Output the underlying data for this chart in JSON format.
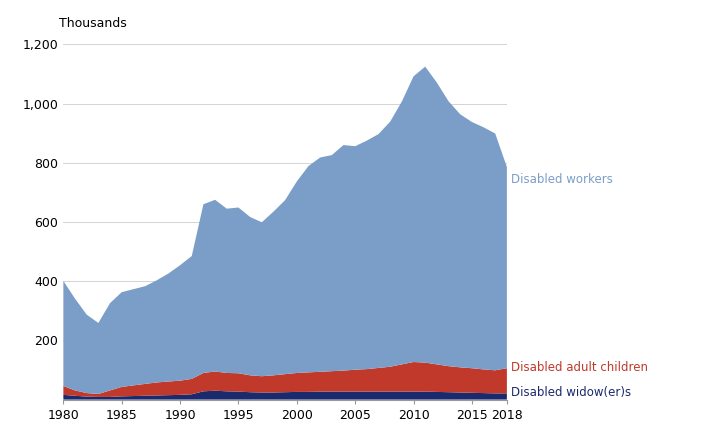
{
  "years": [
    1980,
    1981,
    1982,
    1983,
    1984,
    1985,
    1986,
    1987,
    1988,
    1989,
    1990,
    1991,
    1992,
    1993,
    1994,
    1995,
    1996,
    1997,
    1998,
    1999,
    2000,
    2001,
    2002,
    2003,
    2004,
    2005,
    2006,
    2007,
    2008,
    2009,
    2010,
    2011,
    2012,
    2013,
    2014,
    2015,
    2016,
    2017,
    2018
  ],
  "disabled_workers": [
    355,
    310,
    265,
    240,
    295,
    320,
    325,
    330,
    345,
    365,
    390,
    415,
    570,
    580,
    555,
    560,
    535,
    520,
    553,
    588,
    647,
    697,
    724,
    730,
    762,
    755,
    772,
    790,
    828,
    888,
    965,
    1000,
    952,
    895,
    855,
    832,
    818,
    800,
    680
  ],
  "disabled_adult_children": [
    30,
    18,
    12,
    10,
    22,
    32,
    36,
    40,
    44,
    46,
    48,
    52,
    62,
    65,
    62,
    62,
    57,
    55,
    58,
    61,
    64,
    66,
    67,
    69,
    71,
    74,
    76,
    80,
    84,
    92,
    100,
    98,
    93,
    88,
    85,
    83,
    80,
    78,
    85
  ],
  "disabled_widowers": [
    16,
    13,
    10,
    9,
    9,
    11,
    12,
    13,
    14,
    15,
    16,
    18,
    28,
    30,
    28,
    27,
    25,
    24,
    24,
    25,
    26,
    26,
    27,
    27,
    27,
    27,
    27,
    27,
    27,
    27,
    27,
    27,
    26,
    25,
    24,
    23,
    22,
    21,
    21
  ],
  "color_workers": "#7b9ec8",
  "color_adult_children": "#c0392b",
  "color_widowers": "#1a2a6c",
  "ylabel": "Thousands",
  "ylim": [
    0,
    1200
  ],
  "yticks": [
    0,
    200,
    400,
    600,
    800,
    1000,
    1200
  ],
  "label_workers": "Disabled workers",
  "label_adult_children": "Disabled adult children",
  "label_widowers": "Disabled widow(er)s",
  "background_color": "#ffffff",
  "xticks": [
    1980,
    1985,
    1990,
    1995,
    2000,
    2005,
    2010,
    2015,
    2018
  ],
  "xticklabels": [
    "1980",
    "1985",
    "1990",
    "1995",
    "2000",
    "2005",
    "2010",
    "2015",
    "2018"
  ]
}
